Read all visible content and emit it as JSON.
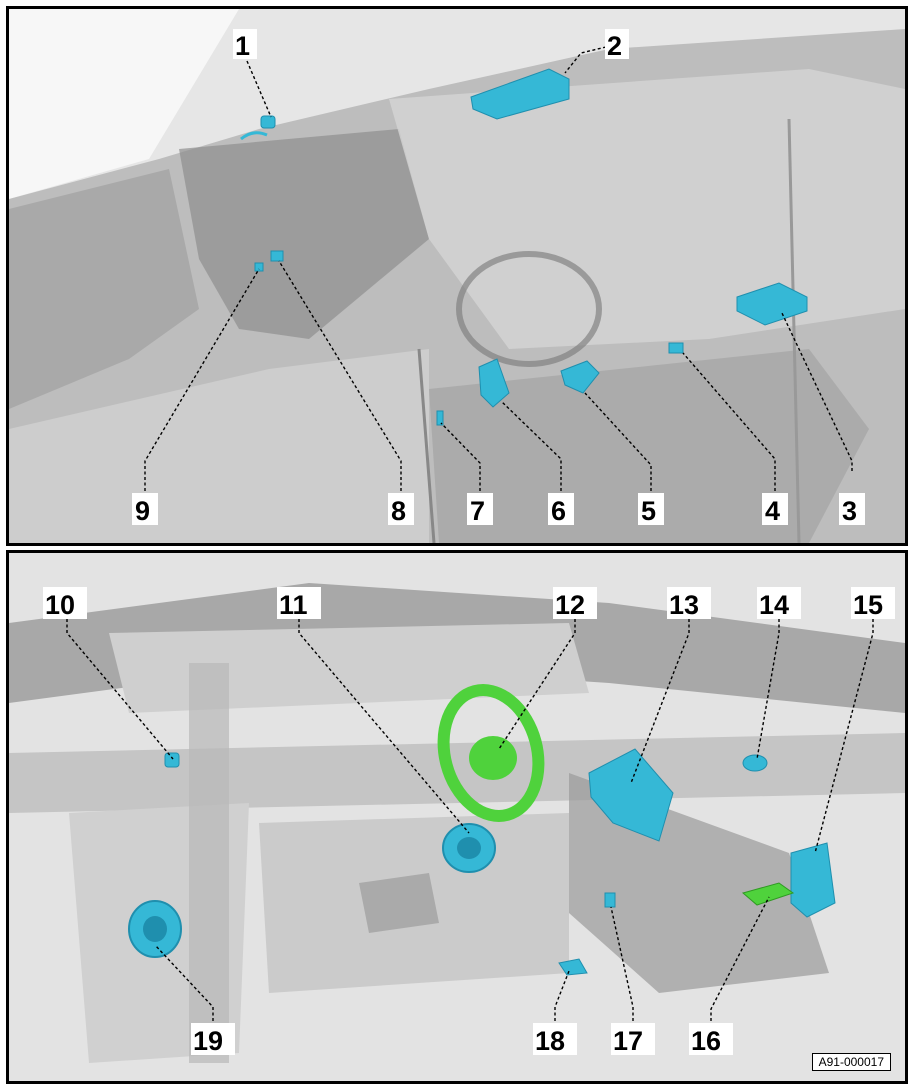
{
  "figure_id": "A91-000017",
  "top_panel": {
    "callouts": [
      {
        "id": "1",
        "text": "1"
      },
      {
        "id": "2",
        "text": "2"
      },
      {
        "id": "3",
        "text": "3"
      },
      {
        "id": "4",
        "text": "4"
      },
      {
        "id": "5",
        "text": "5"
      },
      {
        "id": "6",
        "text": "6"
      },
      {
        "id": "7",
        "text": "7"
      },
      {
        "id": "8",
        "text": "8"
      },
      {
        "id": "9",
        "text": "9"
      }
    ]
  },
  "bottom_panel": {
    "callouts": [
      {
        "id": "10",
        "text": "10"
      },
      {
        "id": "11",
        "text": "11"
      },
      {
        "id": "12",
        "text": "12"
      },
      {
        "id": "13",
        "text": "13"
      },
      {
        "id": "14",
        "text": "14"
      },
      {
        "id": "15",
        "text": "15"
      },
      {
        "id": "16",
        "text": "16"
      },
      {
        "id": "17",
        "text": "17"
      },
      {
        "id": "18",
        "text": "18"
      },
      {
        "id": "19",
        "text": "19"
      }
    ]
  },
  "colors": {
    "component": "#35b8d6",
    "component_dark": "#1f8fae",
    "steering_wheel": "#4fd23c",
    "vehicle_body": "#c9c9c9",
    "background_light": "#f3f3f3"
  }
}
